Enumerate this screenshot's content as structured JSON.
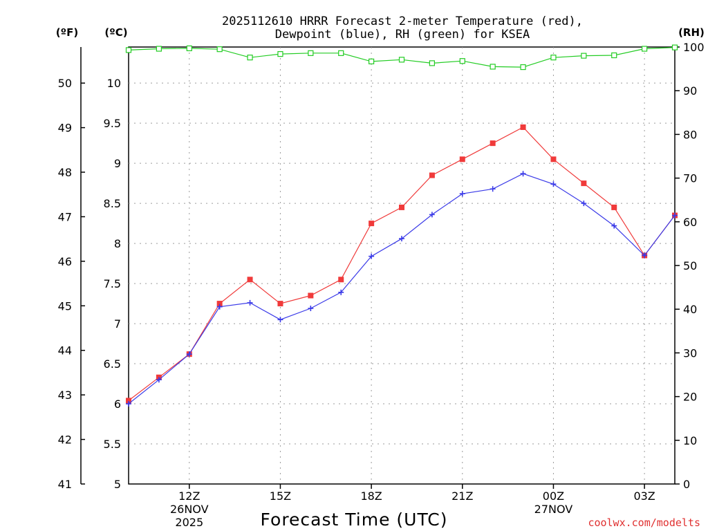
{
  "chart_data": {
    "type": "line",
    "title_line1": "2025112610 HRRR Forecast 2-meter Temperature (red),",
    "title_line2": "Dewpoint (blue), RH (green) for KSEA",
    "unit_label_f": "(ºF)",
    "unit_label_c": "(ºC)",
    "unit_label_rh": "(RH)",
    "xlabel": "Forecast Time (UTC)",
    "credit": "coolwx.com/modelts",
    "x_hours": [
      10,
      11,
      12,
      13,
      14,
      15,
      16,
      17,
      18,
      19,
      20,
      21,
      22,
      23,
      24,
      25,
      26,
      27,
      28
    ],
    "xlim": [
      10,
      28
    ],
    "x_ticks": [
      {
        "hour": 12,
        "label": "12Z",
        "sub1": "26NOV",
        "sub2": "2025"
      },
      {
        "hour": 15,
        "label": "15Z",
        "sub1": "",
        "sub2": ""
      },
      {
        "hour": 18,
        "label": "18Z",
        "sub1": "",
        "sub2": ""
      },
      {
        "hour": 21,
        "label": "21Z",
        "sub1": "",
        "sub2": ""
      },
      {
        "hour": 24,
        "label": "00Z",
        "sub1": "27NOV",
        "sub2": ""
      },
      {
        "hour": 27,
        "label": "03Z",
        "sub1": "",
        "sub2": ""
      }
    ],
    "ylim_c": [
      5,
      10.45
    ],
    "y_ticks_c": [
      5,
      5.5,
      6,
      6.5,
      7,
      7.5,
      8,
      8.5,
      9,
      9.5,
      10
    ],
    "y_tick_labels_c": [
      "5",
      "5.5",
      "6",
      "6.5",
      "7",
      "7.5",
      "8",
      "8.5",
      "9",
      "9.5",
      "10"
    ],
    "ylim_f": [
      41,
      50.81
    ],
    "y_ticks_f": [
      41,
      42,
      43,
      44,
      45,
      46,
      47,
      48,
      49,
      50
    ],
    "y_tick_labels_f": [
      "41",
      "42",
      "43",
      "44",
      "45",
      "46",
      "47",
      "48",
      "49",
      "50"
    ],
    "ylim_rh": [
      0,
      100
    ],
    "y_ticks_rh": [
      0,
      10,
      20,
      30,
      40,
      50,
      60,
      70,
      80,
      90,
      100
    ],
    "y_tick_labels_rh": [
      "0",
      "10",
      "20",
      "30",
      "40",
      "50",
      "60",
      "70",
      "80",
      "90",
      "100"
    ],
    "series": [
      {
        "name": "Temperature",
        "color": "#f03a3a",
        "marker": "filled-square",
        "axis": "c",
        "values": [
          6.04,
          6.33,
          6.62,
          7.25,
          7.55,
          7.25,
          7.35,
          7.55,
          8.25,
          8.45,
          8.85,
          9.05,
          9.25,
          9.45,
          9.05,
          8.75,
          8.45,
          7.85,
          8.35
        ]
      },
      {
        "name": "Dewpoint",
        "color": "#3a3ae8",
        "marker": "plus",
        "axis": "c",
        "values": [
          6.0,
          6.3,
          6.62,
          7.21,
          7.26,
          7.05,
          7.19,
          7.39,
          7.84,
          8.06,
          8.36,
          8.62,
          8.68,
          8.87,
          8.74,
          8.5,
          8.22,
          7.85,
          8.35
        ]
      },
      {
        "name": "RH",
        "color": "#22cc22",
        "marker": "open-square",
        "axis": "rh",
        "values": [
          99.3,
          99.6,
          99.7,
          99.5,
          97.6,
          98.4,
          98.6,
          98.6,
          96.7,
          97.1,
          96.3,
          96.8,
          95.5,
          95.4,
          97.6,
          98.0,
          98.1,
          99.6,
          99.9
        ]
      }
    ],
    "grid": true
  }
}
